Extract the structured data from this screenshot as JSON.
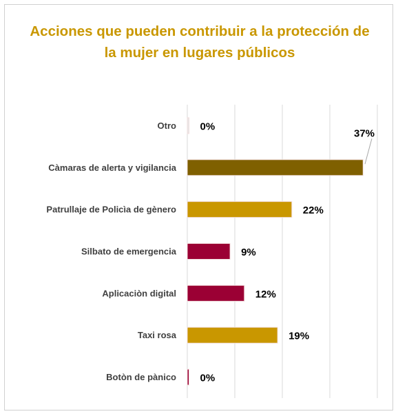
{
  "chart_data": {
    "type": "bar",
    "orientation": "horizontal",
    "title": "Acciones que pueden contribuir a la protección de la mujer en lugares públicos",
    "categories": [
      "Otro",
      "Càmaras de alerta y vigilancia",
      "Patrullaje de Policìa de gènero",
      "Silbato de emergencia",
      "Aplicaciòn digital",
      "Taxi rosa",
      "Botòn de pànico"
    ],
    "values": [
      0,
      37,
      22,
      9,
      12,
      19,
      0
    ],
    "value_labels": [
      "0%",
      "37%",
      "22%",
      "9%",
      "12%",
      "19%",
      "0%"
    ],
    "bar_colors": [
      "#e8e8e8",
      "#7f6000",
      "#c99700",
      "#9b0034",
      "#9b0034",
      "#c99700",
      "#9b0034"
    ],
    "xlim": [
      0,
      40
    ],
    "grid": true,
    "legend": "none",
    "colors": {
      "title": "#c99700",
      "category_text": "#404040",
      "value_text": "#000000",
      "gridline": "#d9d9d9"
    }
  }
}
